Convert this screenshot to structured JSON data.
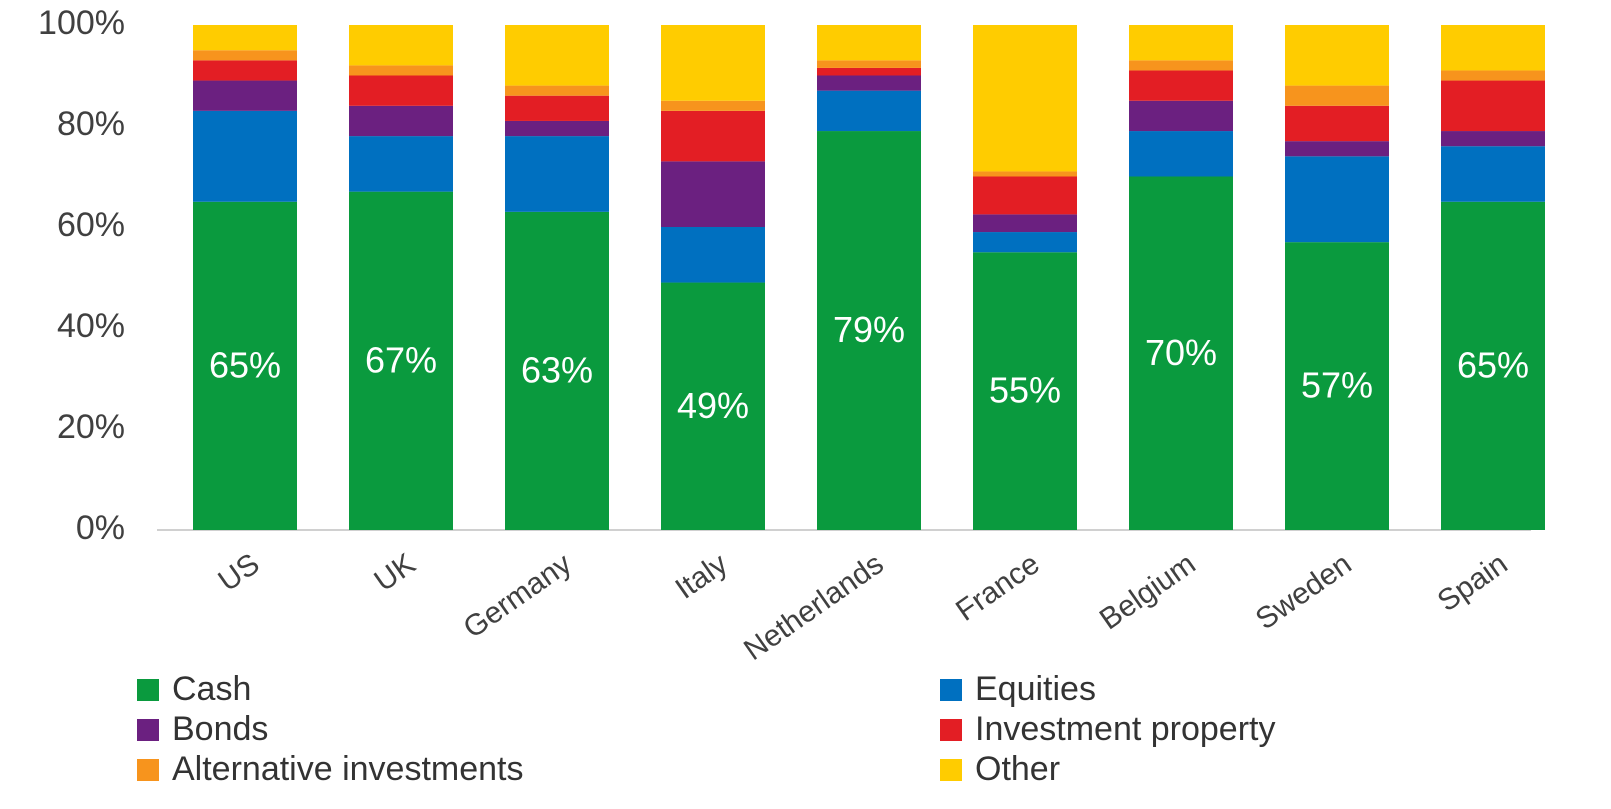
{
  "chart_data": {
    "type": "stacked_bar",
    "categories": [
      "US",
      "UK",
      "Germany",
      "Italy",
      "Netherlands",
      "France",
      "Belgium",
      "Sweden",
      "Spain"
    ],
    "series": [
      {
        "name": "Cash",
        "color": "#0a9a3e",
        "values": [
          65,
          67,
          63,
          49,
          79,
          55,
          70,
          57,
          65
        ],
        "value_labels": [
          "65%",
          "67%",
          "63%",
          "49%",
          "79%",
          "55%",
          "70%",
          "57%",
          "65%"
        ]
      },
      {
        "name": "Equities",
        "color": "#0070c0",
        "values": [
          18,
          11,
          15,
          11,
          8,
          4,
          9,
          17,
          11
        ]
      },
      {
        "name": "Bonds",
        "color": "#6b2080",
        "values": [
          6,
          6,
          3,
          13,
          3,
          3.5,
          6,
          3,
          3
        ]
      },
      {
        "name": "Investment property",
        "color": "#e31e24",
        "values": [
          4,
          6,
          5,
          10,
          1.5,
          7.5,
          6,
          7,
          10
        ]
      },
      {
        "name": "Alternative investments",
        "color": "#f7941d",
        "values": [
          2,
          2,
          2,
          2,
          1.5,
          1,
          2,
          4,
          2
        ]
      },
      {
        "name": "Other",
        "color": "#ffcc00",
        "values": [
          5,
          8,
          12,
          15,
          7,
          29,
          7,
          12,
          9
        ]
      }
    ],
    "ylim": [
      0,
      100
    ],
    "yticks": [
      {
        "value": 0,
        "label": "0%"
      },
      {
        "value": 20,
        "label": "20%"
      },
      {
        "value": 40,
        "label": "40%"
      },
      {
        "value": 60,
        "label": "60%"
      },
      {
        "value": 80,
        "label": "80%"
      },
      {
        "value": 100,
        "label": "100%"
      }
    ],
    "grid": false
  }
}
